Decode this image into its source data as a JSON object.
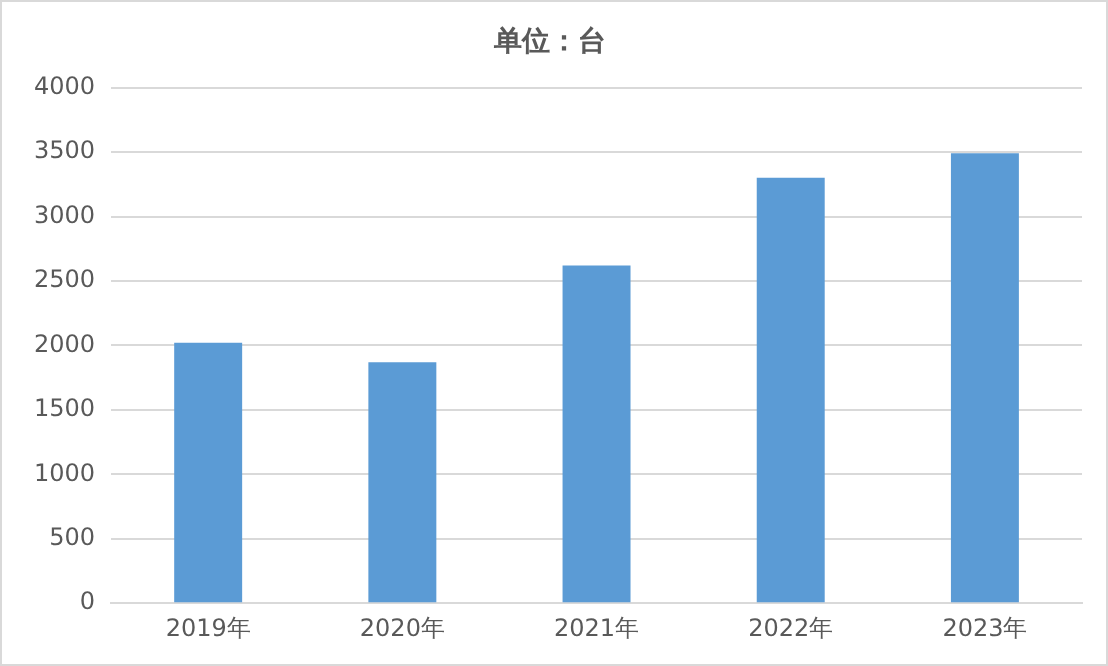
{
  "chart_data": {
    "type": "bar",
    "title": "单位：台",
    "categories": [
      "2019年",
      "2020年",
      "2021年",
      "2022年",
      "2023年"
    ],
    "values": [
      2020,
      1870,
      2620,
      3300,
      3490
    ],
    "color": "#5b9bd5",
    "ylim": [
      0,
      4000
    ],
    "yticks": [
      0,
      500,
      1000,
      1500,
      2000,
      2500,
      3000,
      3500,
      4000
    ],
    "grid": "y"
  }
}
